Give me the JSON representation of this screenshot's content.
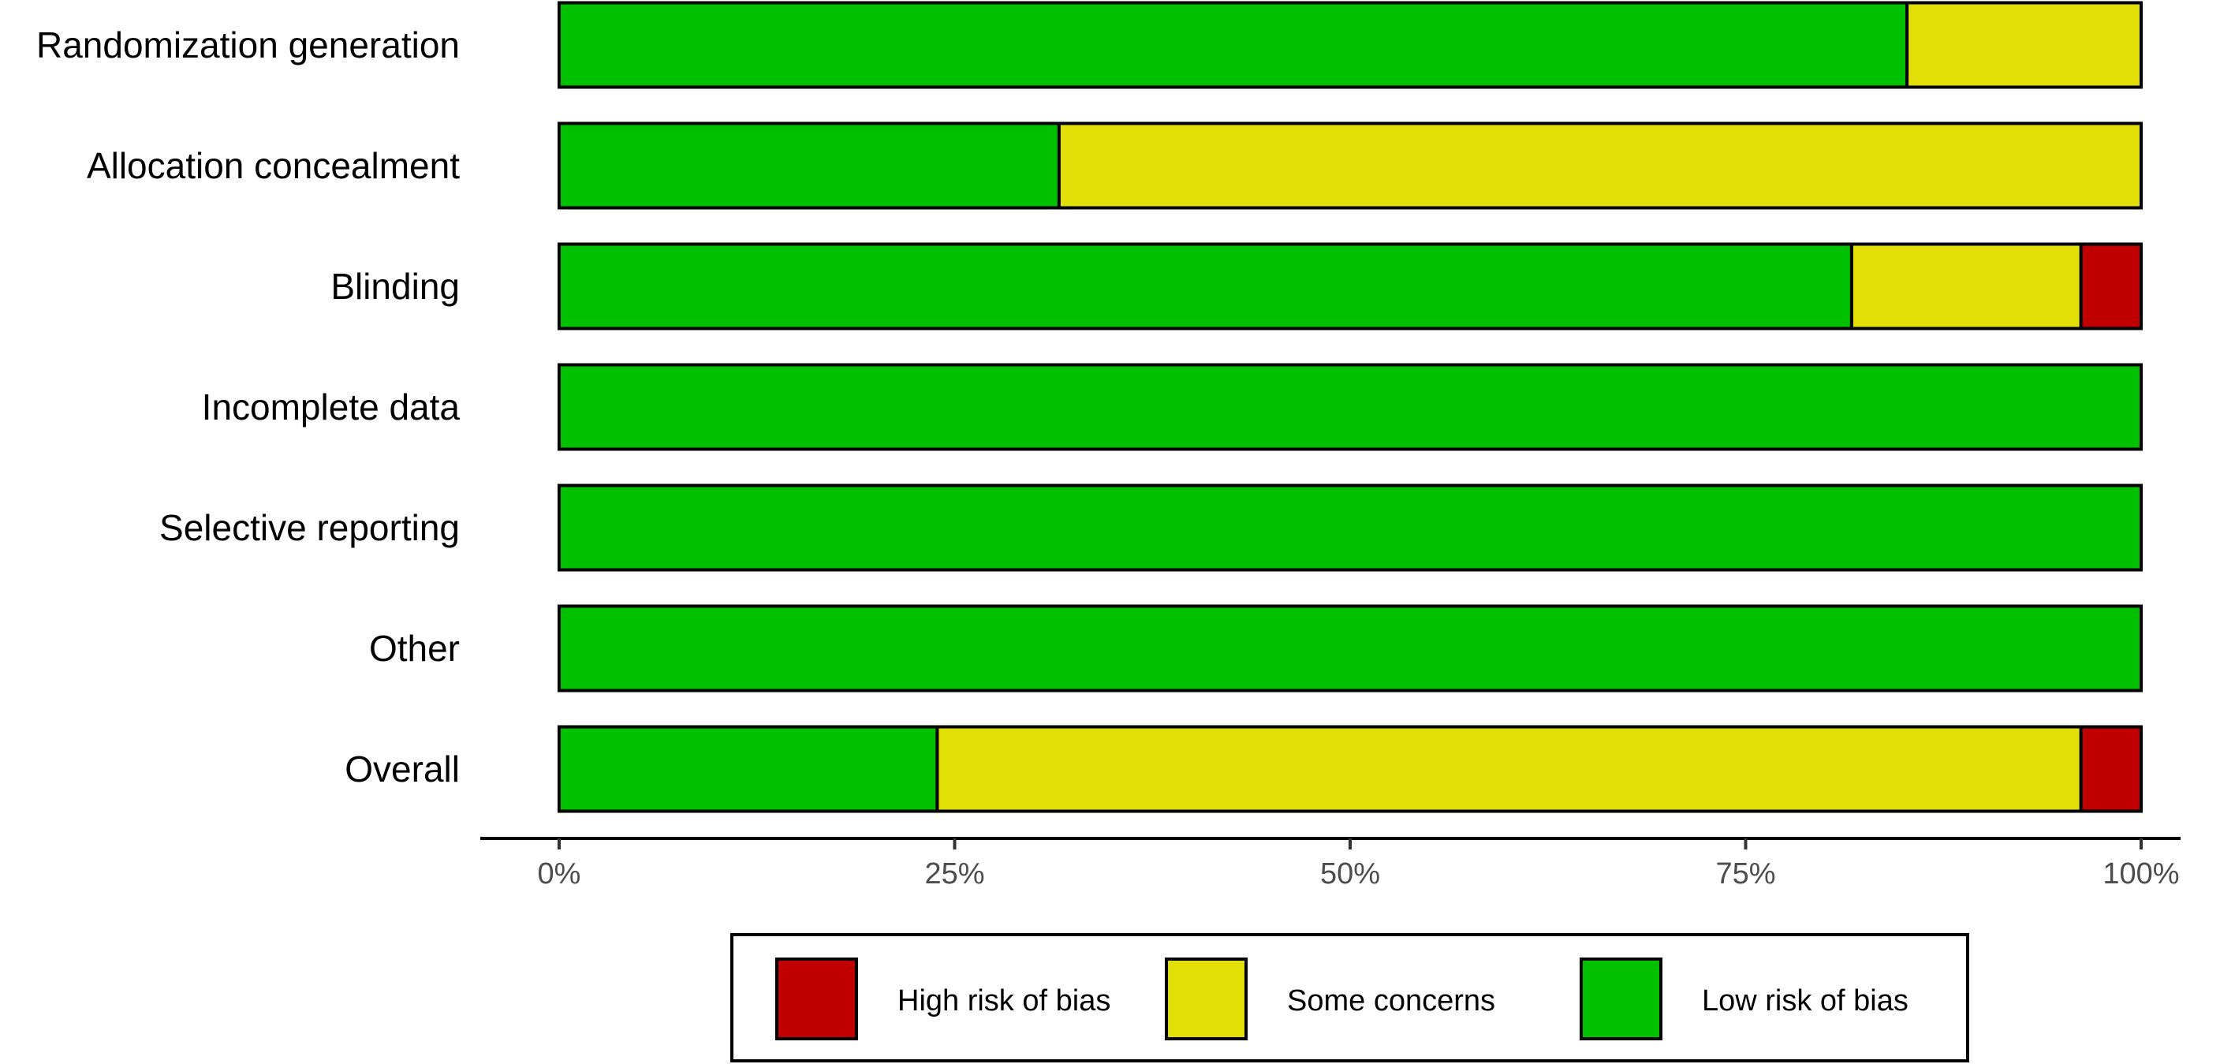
{
  "chart_data": {
    "type": "bar",
    "orientation": "horizontal",
    "stacked": true,
    "categories": [
      "Randomization generation",
      "Allocation concealment",
      "Blinding",
      "Incomplete data",
      "Selective reporting",
      "Other",
      "Overall"
    ],
    "series": [
      {
        "name": "Low risk of bias",
        "color": "#00c000",
        "values": [
          85.2,
          31.6,
          81.7,
          100,
          100,
          100,
          23.9
        ]
      },
      {
        "name": "Some concerns",
        "color": "#e2df07",
        "values": [
          14.8,
          68.4,
          14.5,
          0,
          0,
          0,
          72.3
        ]
      },
      {
        "name": "High risk of bias",
        "color": "#c00000",
        "values": [
          0,
          0,
          3.8,
          0,
          0,
          0,
          3.8
        ]
      }
    ],
    "xlim": [
      0,
      100
    ],
    "xticks": [
      "0%",
      "25%",
      "50%",
      "75%",
      "100%"
    ],
    "title": "",
    "xlabel": "",
    "ylabel": "",
    "legend": {
      "position": "bottom",
      "order": [
        "High risk of bias",
        "Some concerns",
        "Low risk of bias"
      ]
    },
    "grid": false
  }
}
